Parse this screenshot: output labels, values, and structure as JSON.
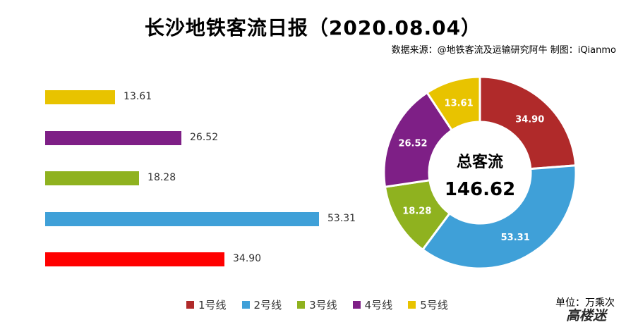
{
  "title": "长沙地铁客流日报（2020.08.04）",
  "source": "数据来源：@地铁客流及运输研究阿牛 制图：iQianmo",
  "unit": "单位：万乘次",
  "watermark": "高楼迷",
  "center": {
    "label": "总客流",
    "value": "146.62"
  },
  "colors": {
    "line1": "#b02a2a",
    "line2": "#3fa0d8",
    "line3": "#8fb21f",
    "line4": "#7e1f86",
    "line5": "#e8c300",
    "bar_line1": "#ff0000"
  },
  "chart_data": [
    {
      "type": "bar",
      "orientation": "horizontal",
      "categories": [
        "5号线",
        "4号线",
        "3号线",
        "2号线",
        "1号线"
      ],
      "values": [
        13.61,
        26.52,
        18.28,
        53.31,
        34.9
      ],
      "value_labels": [
        "13.61",
        "26.52",
        "18.28",
        "53.31",
        "34.90"
      ]
    },
    {
      "type": "pie",
      "donut": true,
      "categories": [
        "1号线",
        "2号线",
        "3号线",
        "4号线",
        "5号线"
      ],
      "values": [
        34.9,
        53.31,
        18.28,
        26.52,
        13.61
      ],
      "value_labels": [
        "34.90",
        "53.31",
        "18.28",
        "26.52",
        "13.61"
      ]
    }
  ],
  "legend": [
    "1号线",
    "2号线",
    "3号线",
    "4号线",
    "5号线"
  ]
}
